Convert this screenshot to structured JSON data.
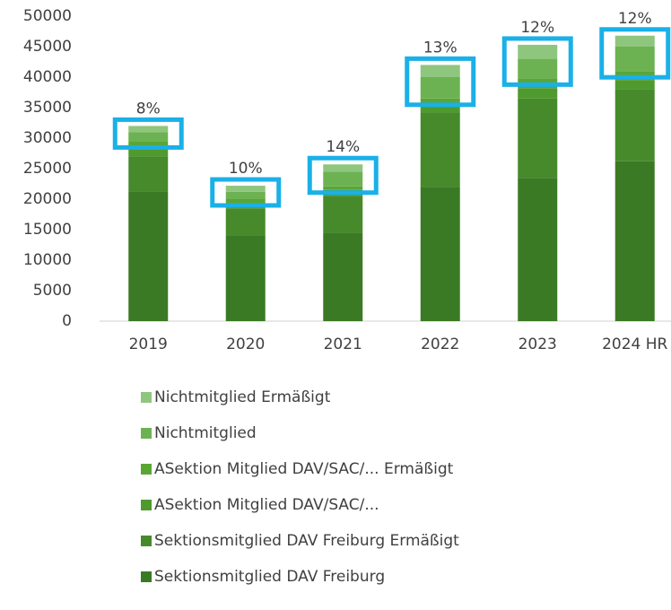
{
  "chart_data": {
    "type": "stacked_bar",
    "categories": [
      "2019",
      "2020",
      "2021",
      "2022",
      "2023",
      "2024 HR"
    ],
    "series": [
      {
        "name": "Sektionsmitglied DAV Freiburg",
        "color": "#3b7a24",
        "values": [
          21300,
          14100,
          14500,
          22000,
          23500,
          26200
        ]
      },
      {
        "name": "Sektionsmitglied DAV Freiburg Ermäßigt",
        "color": "#468a2b",
        "values": [
          5700,
          4400,
          6000,
          12200,
          13000,
          11800
        ]
      },
      {
        "name": "ASektion Mitglied DAV/SAC/...",
        "color": "#4f9a2e",
        "values": [
          1500,
          800,
          1000,
          1300,
          1700,
          1500
        ]
      },
      {
        "name": "ASektion Mitglied DAV/SAC/... Ermäßigt",
        "color": "#5aa635",
        "values": [
          1000,
          700,
          600,
          1000,
          1600,
          1500
        ]
      },
      {
        "name": "Nichtmitglied",
        "color": "#6cb252",
        "values": [
          1500,
          1200,
          2400,
          3500,
          3200,
          4000
        ]
      },
      {
        "name": "Nichtmitglied Ermäßigt",
        "color": "#8fc67d",
        "values": [
          1000,
          1000,
          1200,
          2000,
          2300,
          1800
        ]
      }
    ],
    "bar_labels": [
      "8%",
      "10%",
      "14%",
      "13%",
      "12%",
      "12%"
    ],
    "ylim": [
      0,
      50000
    ],
    "yticks": [
      0,
      5000,
      10000,
      15000,
      20000,
      25000,
      30000,
      35000,
      40000,
      45000,
      50000
    ],
    "grid": false,
    "legend": "bottom"
  }
}
